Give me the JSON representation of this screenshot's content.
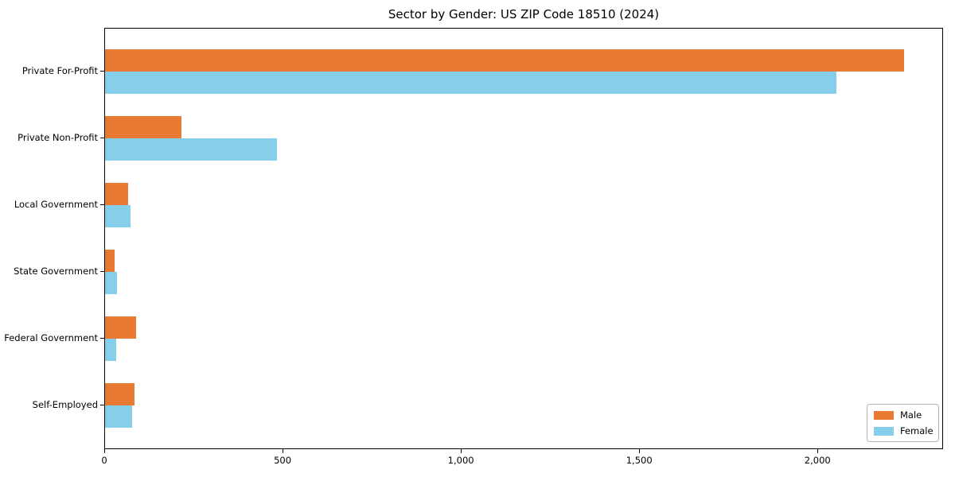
{
  "chart_data": {
    "type": "bar",
    "orientation": "horizontal",
    "title": "Sector by Gender: US ZIP Code 18510 (2024)",
    "categories": [
      "Private For-Profit",
      "Private Non-Profit",
      "Local Government",
      "State Government",
      "Federal Government",
      "Self-Employed"
    ],
    "series": [
      {
        "name": "Male",
        "color": "#E87A33",
        "values": [
          2240,
          214,
          65,
          26,
          86,
          83
        ]
      },
      {
        "name": "Female",
        "color": "#87CEEB",
        "values": [
          2050,
          481,
          72,
          33,
          31,
          76
        ]
      }
    ],
    "xlabel": "",
    "ylabel": "",
    "xlim": [
      0,
      2352
    ],
    "xticks": [
      0,
      500,
      1000,
      1500,
      2000
    ],
    "xtick_labels": [
      "0",
      "500",
      "1,000",
      "1,500",
      "2,000"
    ],
    "grid": false,
    "legend": {
      "position": "lower right",
      "items": [
        {
          "label": "Male",
          "color": "#E87A33"
        },
        {
          "label": "Female",
          "color": "#87CEEB"
        }
      ]
    }
  }
}
